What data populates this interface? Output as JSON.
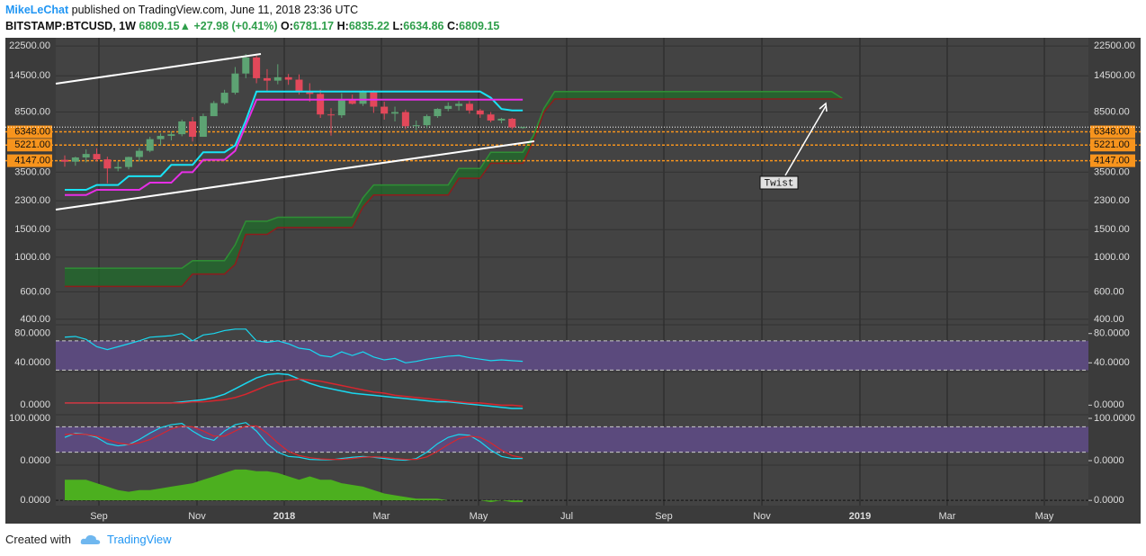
{
  "header": {
    "author": "MikeLeChat",
    "published": "published on TradingView.com, June 11, 2018 23:36 UTC",
    "symbol": "BITSTAMP:BTCUSD, 1W",
    "arrow": "▲",
    "change": "+27.98 (+0.41%)",
    "o_label": "O:",
    "h_label": "H:",
    "l_label": "L:",
    "c_label": "C:"
  },
  "footer": {
    "text": "Created with",
    "brand": "TradingView"
  },
  "chart_data": {
    "type": "candlestick",
    "log": true,
    "ylim": [
      374,
      25400
    ],
    "yticks": [
      {
        "value": 22500,
        "label": "22500.00"
      },
      {
        "value": 14500,
        "label": "14500.00"
      },
      {
        "value": 8500,
        "label": "8500.00"
      },
      {
        "value": 3500,
        "label": "3500.00"
      },
      {
        "value": 2300,
        "label": "2300.00"
      },
      {
        "value": 1500,
        "label": "1500.00"
      },
      {
        "value": 1000,
        "label": "1000.00"
      },
      {
        "value": 600,
        "label": "600.00"
      },
      {
        "value": 400,
        "label": "400.00"
      }
    ],
    "levels": [
      {
        "value": 6348,
        "label": "6348.00"
      },
      {
        "value": 5221,
        "label": "5221.00"
      },
      {
        "value": 4147,
        "label": "4147.00"
      }
    ],
    "level_color": "#f7941d",
    "categories": [
      "Sep",
      "Nov",
      "2018",
      "Mar",
      "May",
      "Jul",
      "Sep",
      "Nov",
      "2019",
      "Mar",
      "May"
    ],
    "up_color": "#5da373",
    "down_color": "#e2485a",
    "open": [
      4200,
      4087,
      4350,
      4580,
      4230,
      3700,
      3780,
      4380,
      4800,
      5700,
      5980,
      6130,
      7400,
      5900,
      8000,
      9700,
      11300,
      15000,
      19000,
      14000,
      13500,
      14200,
      13700,
      11600,
      11100,
      8200,
      8100,
      10200,
      9600,
      11500,
      9200,
      8300,
      8500,
      6900,
      7000,
      8000,
      8900,
      9300,
      9600,
      8700,
      8200,
      7500,
      7700,
      6781.17
    ],
    "high": [
      4480,
      4400,
      4900,
      4980,
      4400,
      4100,
      4400,
      5000,
      5900,
      6200,
      6400,
      7600,
      7900,
      8300,
      10000,
      11800,
      16500,
      20000,
      19500,
      16000,
      17200,
      14900,
      14800,
      13000,
      11800,
      9000,
      11200,
      11000,
      11700,
      11700,
      9900,
      9200,
      8800,
      7500,
      8200,
      9000,
      9800,
      9990,
      10000,
      8900,
      8500,
      7800,
      7800,
      6835.22
    ],
    "low": [
      3800,
      3850,
      4050,
      4100,
      2970,
      3550,
      3650,
      4100,
      4700,
      5200,
      5600,
      5950,
      5500,
      5900,
      8000,
      9500,
      11000,
      14000,
      13000,
      11500,
      12800,
      12700,
      11000,
      9900,
      7800,
      6000,
      7800,
      9500,
      9300,
      8400,
      7600,
      7400,
      6600,
      6500,
      6700,
      7800,
      8600,
      8700,
      8300,
      7800,
      7300,
      7200,
      6600,
      6634.86
    ],
    "close": [
      4087,
      4350,
      4580,
      4230,
      3700,
      3780,
      4380,
      4800,
      5700,
      5980,
      6130,
      7400,
      5900,
      8000,
      9700,
      11300,
      15000,
      19000,
      14000,
      13500,
      14200,
      13700,
      11600,
      11100,
      8200,
      8100,
      10200,
      9600,
      11500,
      9200,
      8300,
      8500,
      6900,
      7000,
      8000,
      8900,
      9300,
      9600,
      8700,
      8200,
      7500,
      7700,
      6781.17,
      6809.15
    ],
    "lines": [
      {
        "color": "#19e3f5",
        "values": [
          2700,
          2700,
          2700,
          2900,
          2900,
          2900,
          3300,
          3300,
          3300,
          3300,
          3900,
          3900,
          3900,
          4700,
          4700,
          4700,
          5200,
          7500,
          11500,
          11500,
          11500,
          11500,
          11500,
          11500,
          11500,
          11500,
          11500,
          11500,
          11500,
          11500,
          11500,
          11500,
          11500,
          11500,
          11500,
          11500,
          11500,
          11500,
          11500,
          11500,
          10500,
          8900,
          8700,
          8700
        ]
      },
      {
        "color": "#e62ee6",
        "values": [
          2500,
          2500,
          2500,
          2700,
          2700,
          2700,
          2700,
          2700,
          3000,
          3000,
          3000,
          3500,
          3500,
          4200,
          4200,
          4200,
          4800,
          7000,
          10200,
          10200,
          10200,
          10200,
          10200,
          10200,
          10200,
          10200,
          10200,
          10200,
          10200,
          10200,
          10200,
          10200,
          10200,
          10200,
          10200,
          10200,
          10200,
          10200,
          10200,
          10200,
          10200,
          10200,
          10200,
          10200
        ]
      }
    ],
    "cloud": {
      "fill": "#1f6b2a",
      "a_color": "#2f8f35",
      "b_color": "#8e1c1c",
      "a": [
        850,
        850,
        850,
        850,
        850,
        850,
        850,
        850,
        850,
        850,
        850,
        850,
        950,
        950,
        950,
        950,
        1200,
        1700,
        1700,
        1700,
        1800,
        1800,
        1800,
        1800,
        1800,
        1800,
        1800,
        1800,
        2400,
        2900,
        2900,
        2900,
        2900,
        2900,
        2900,
        2900,
        2900,
        3700,
        3700,
        3700,
        4700,
        4700,
        4700,
        4700,
        6000,
        9000,
        11500,
        11500,
        11500,
        11500,
        11500,
        11500,
        11500,
        11500,
        11500,
        11500,
        11500,
        11500,
        11500,
        11500,
        11500,
        11500,
        11500,
        11500,
        11500,
        11500,
        11500,
        11500,
        11500,
        11500,
        11500,
        11500,
        11500,
        10400
      ],
      "b": [
        650,
        650,
        650,
        650,
        650,
        650,
        650,
        650,
        650,
        650,
        650,
        650,
        780,
        780,
        780,
        780,
        900,
        1400,
        1400,
        1400,
        1550,
        1550,
        1550,
        1550,
        1550,
        1550,
        1550,
        1550,
        2100,
        2500,
        2500,
        2500,
        2500,
        2500,
        2500,
        2500,
        2500,
        3200,
        3200,
        3200,
        4000,
        4000,
        4000,
        4000,
        5500,
        8500,
        10300,
        10300,
        10300,
        10300,
        10300,
        10300,
        10300,
        10300,
        10300,
        10300,
        10300,
        10300,
        10300,
        10300,
        10300,
        10300,
        10300,
        10300,
        10300,
        10300,
        10300,
        10300,
        10300,
        10300,
        10300,
        10300,
        10300,
        10300
      ]
    },
    "annotation": "Twist",
    "rsi": {
      "color": "#19d8f0",
      "band_color": "#5b4a7d",
      "ylim": [
        29.3,
        90.7
      ],
      "yticks": [
        {
          "value": 80,
          "label": "80.0000"
        },
        {
          "value": 40,
          "label": "40.0000"
        }
      ],
      "levels": [
        70,
        30
      ],
      "values": [
        75,
        76,
        72,
        62,
        58,
        62,
        66,
        70,
        75,
        76,
        77,
        80,
        70,
        78,
        80,
        84,
        86,
        86,
        70,
        68,
        70,
        66,
        60,
        58,
        50,
        48,
        55,
        50,
        55,
        48,
        44,
        46,
        40,
        42,
        45,
        47,
        49,
        50,
        47,
        45,
        43,
        44,
        43,
        42
      ]
    },
    "macd": {
      "ylim": [
        -8,
        30
      ],
      "yticks": [
        {
          "value": 0,
          "label": "0.0000"
        }
      ],
      "series": [
        {
          "color": "#19d8f0",
          "values": [
            2,
            2,
            2,
            2,
            2,
            2,
            2,
            2,
            2,
            2,
            2,
            3,
            4,
            5,
            7,
            10,
            15,
            20,
            25,
            28,
            29,
            28,
            24,
            20,
            17,
            15,
            13,
            11,
            10,
            9,
            8,
            7,
            6,
            5,
            4,
            3,
            3,
            2,
            1,
            0,
            -1,
            -2,
            -3,
            -3
          ]
        },
        {
          "color": "#d8262e",
          "values": [
            2,
            2,
            2,
            2,
            2,
            2,
            2,
            2,
            2,
            2,
            2,
            2,
            3,
            3,
            4,
            5,
            7,
            10,
            14,
            18,
            21,
            23,
            24,
            23,
            22,
            20,
            18,
            16,
            14,
            12,
            11,
            9,
            8,
            7,
            6,
            5,
            4,
            3,
            2,
            2,
            1,
            0,
            0,
            -1
          ]
        }
      ]
    },
    "stoch": {
      "band_color": "#5b4a7d",
      "ylim": [
        -8.5,
        106.4
      ],
      "yticks": [
        {
          "value": 100,
          "label": "100.0000"
        },
        {
          "value": 0,
          "label": "0.0000"
        }
      ],
      "levels": [
        80,
        20
      ],
      "series": [
        {
          "color": "#19d8f0",
          "values": [
            55,
            65,
            62,
            55,
            40,
            35,
            38,
            50,
            65,
            78,
            85,
            88,
            70,
            55,
            48,
            70,
            85,
            90,
            70,
            40,
            20,
            10,
            8,
            3,
            2,
            2,
            5,
            8,
            10,
            8,
            5,
            2,
            1,
            5,
            20,
            40,
            55,
            62,
            60,
            45,
            25,
            10,
            5,
            5
          ]
        },
        {
          "color": "#d8262e",
          "values": [
            62,
            63,
            62,
            58,
            50,
            42,
            38,
            42,
            50,
            62,
            75,
            82,
            80,
            70,
            58,
            58,
            70,
            82,
            82,
            65,
            42,
            22,
            12,
            7,
            4,
            3,
            3,
            5,
            8,
            9,
            8,
            5,
            3,
            3,
            9,
            22,
            38,
            52,
            58,
            55,
            42,
            25,
            12,
            7
          ]
        }
      ]
    },
    "momentum": {
      "color": "#4caf1f",
      "ylim": [
        -2,
        20
      ],
      "yticks": [
        {
          "value": 0,
          "label": "0.0000"
        }
      ],
      "values": [
        12,
        12,
        12,
        10,
        8,
        6,
        5,
        6,
        6,
        7,
        8,
        9,
        10,
        12,
        14,
        16,
        18,
        18,
        17,
        17,
        16,
        14,
        12,
        14,
        12,
        12,
        10,
        9,
        8,
        6,
        4,
        3,
        2,
        1,
        1,
        1,
        0,
        0,
        0,
        0,
        -1,
        0,
        -1,
        -1
      ]
    }
  }
}
